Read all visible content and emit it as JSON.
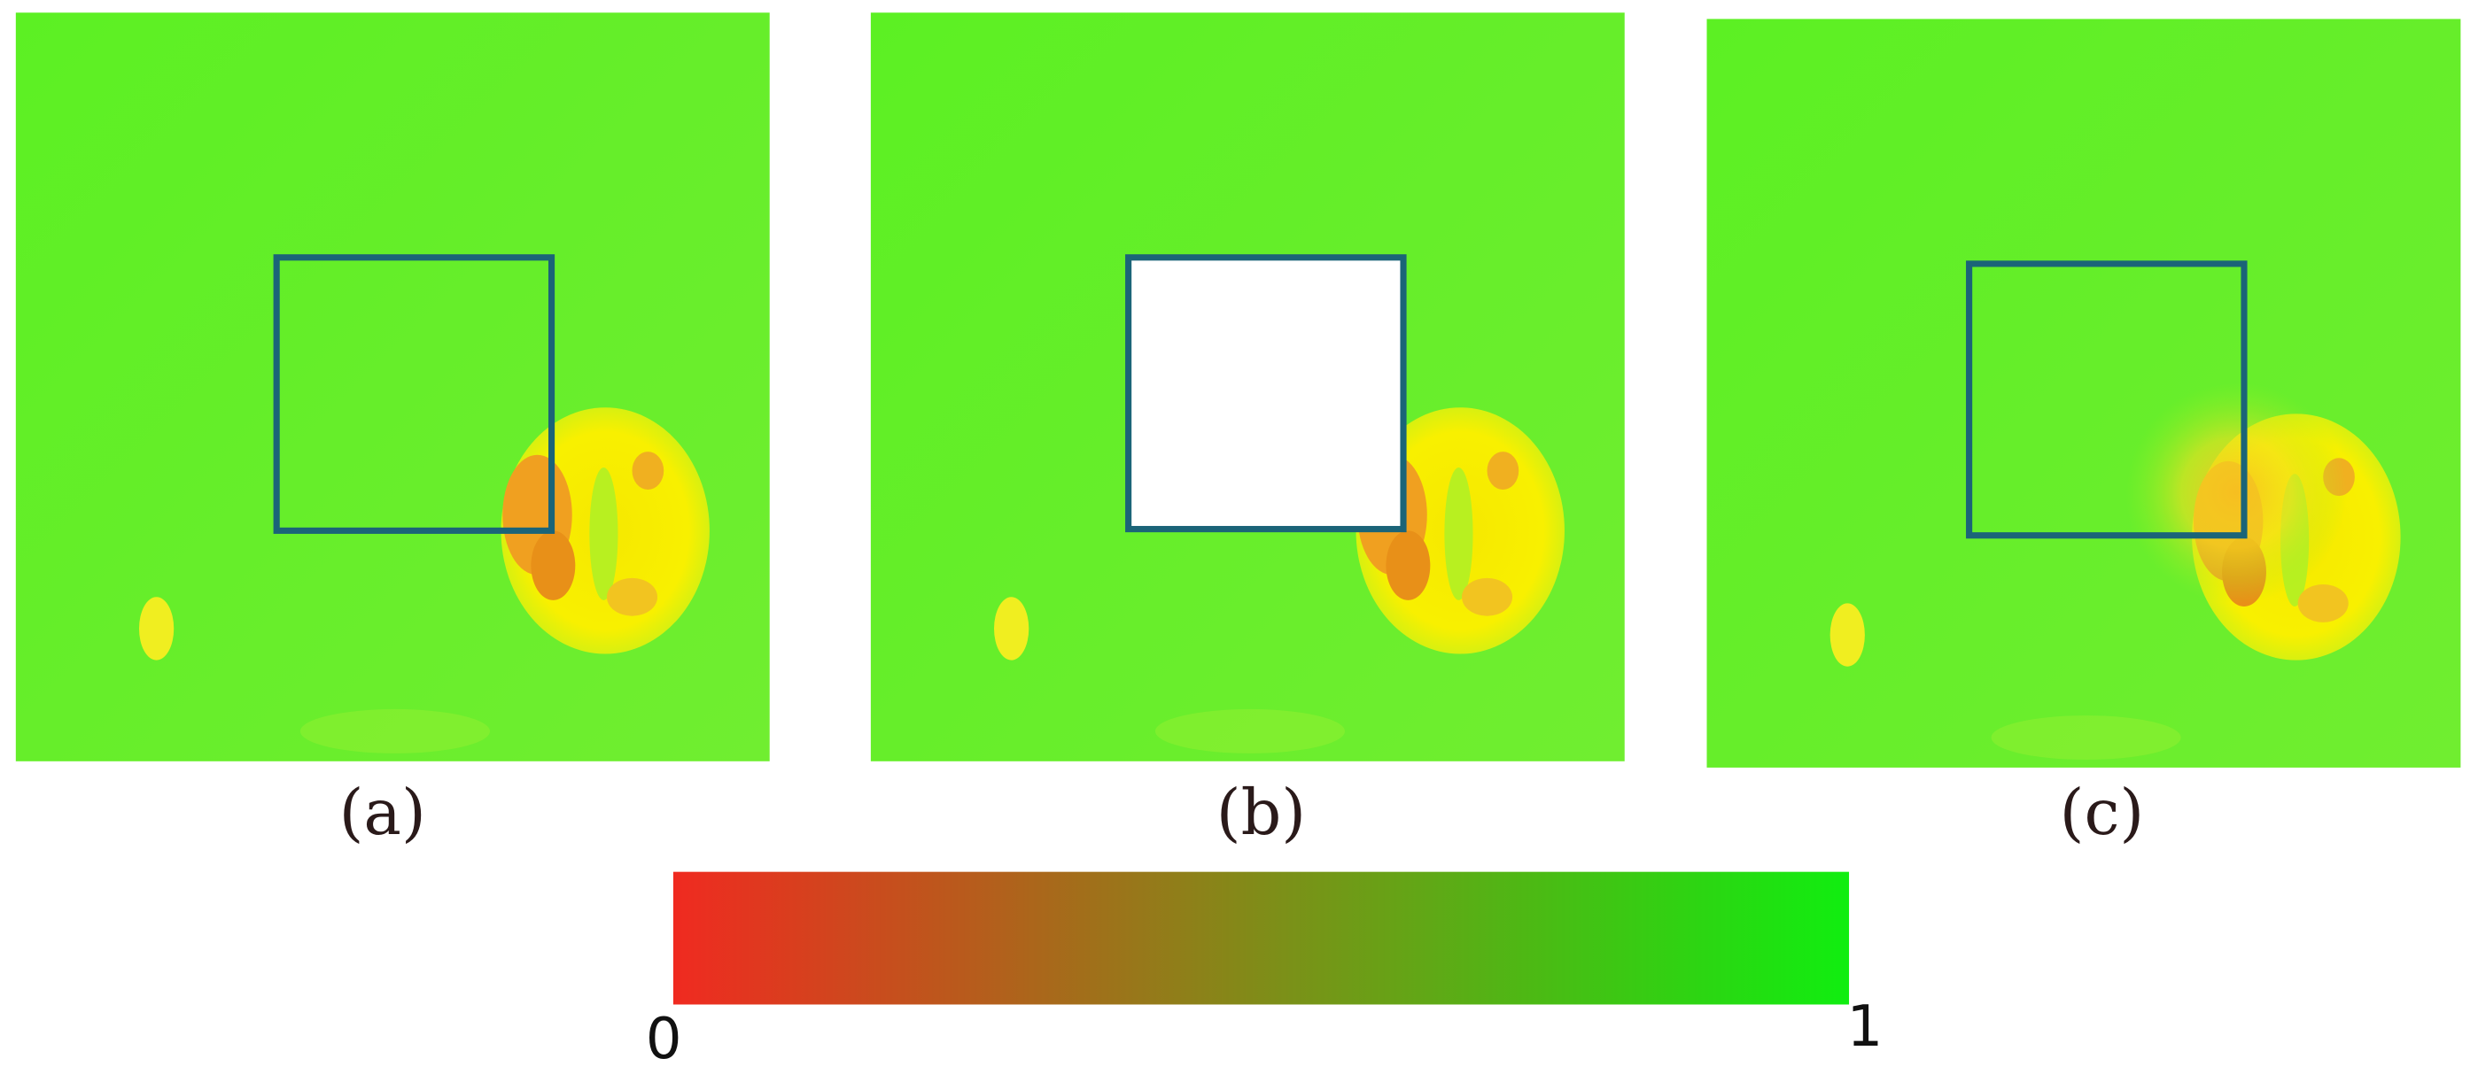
{
  "panels": [
    {
      "label": "(a)"
    },
    {
      "label": "(b)"
    },
    {
      "label": "(c)"
    }
  ],
  "colorbar": {
    "ticks": [
      0,
      1
    ],
    "colors": [
      "#f02a20",
      "#10ee10"
    ]
  }
}
